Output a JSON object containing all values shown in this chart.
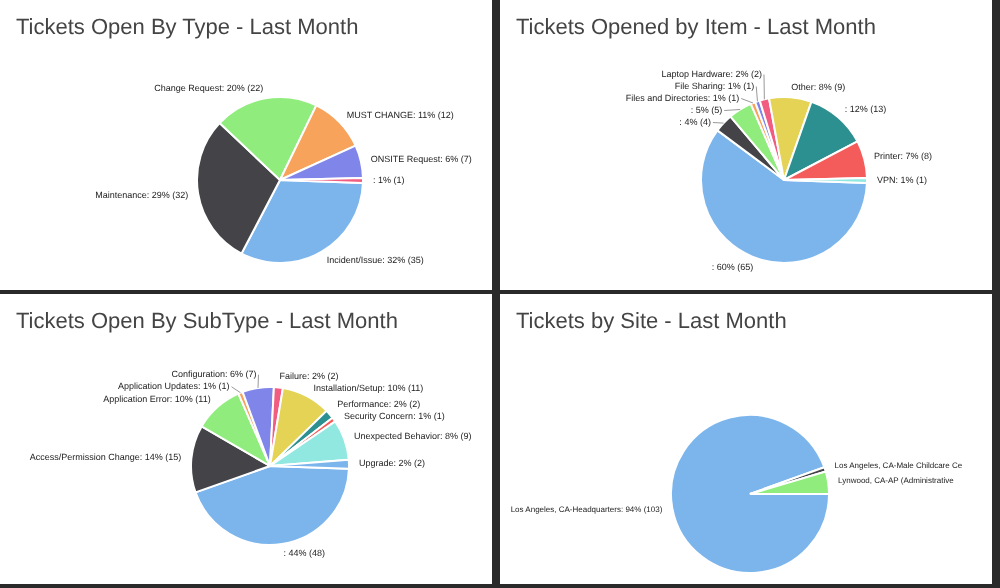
{
  "chart_data": [
    {
      "type": "pie",
      "title": "Tickets Open By Type - Last Month",
      "categories": [
        "Incident/Issue",
        "Maintenance",
        "Change Request",
        "MUST CHANGE",
        "ONSITE Request",
        null
      ],
      "values": [
        35,
        32,
        22,
        12,
        7,
        1
      ],
      "value_labels": [
        "32% (35)",
        "29% (32)",
        "20% (22)",
        "11% (12)",
        "6% (7)",
        ": 1% (1)"
      ],
      "colors": [
        "#7cb5ec",
        "#434348",
        "#90ed7d",
        "#f7a35c",
        "#8085e9",
        "#f15c80"
      ]
    },
    {
      "type": "pie",
      "title": "Tickets Opened by Item - Last Month",
      "categories": [
        null,
        null,
        null,
        "Files and Directories",
        "File Sharing",
        "Laptop Hardware",
        "Other",
        null,
        "Printer",
        "VPN"
      ],
      "values": [
        65,
        4,
        5,
        1,
        1,
        2,
        9,
        13,
        8,
        1
      ],
      "value_labels": [
        ": 60% (65)",
        ": 4% (4)",
        ": 5% (5)",
        "1% (1)",
        "1% (1)",
        "2% (2)",
        "8% (9)",
        ": 12% (13)",
        "7% (8)",
        "1% (1)"
      ],
      "colors": [
        "#7cb5ec",
        "#434348",
        "#90ed7d",
        "#f7a35c",
        "#8085e9",
        "#f15c80",
        "#e4d354",
        "#2b908f",
        "#f45b5b",
        "#91e8e1"
      ]
    },
    {
      "type": "pie",
      "title": "Tickets Open By SubType - Last Month",
      "categories": [
        null,
        "Access/Permission Change",
        "Application Error",
        "Application Updates",
        "Configuration",
        "Failure",
        "Installation/Setup",
        "Performance",
        "Security Concern",
        "Unexpected Behavior",
        "Upgrade"
      ],
      "values": [
        48,
        15,
        11,
        1,
        7,
        2,
        11,
        2,
        1,
        9,
        2
      ],
      "value_labels": [
        ": 44% (48)",
        "14% (15)",
        "10% (11)",
        "1% (1)",
        "6% (7)",
        "2% (2)",
        "10% (11)",
        "2% (2)",
        "1% (1)",
        "8% (9)",
        "2% (2)"
      ],
      "colors": [
        "#7cb5ec",
        "#434348",
        "#90ed7d",
        "#f7a35c",
        "#8085e9",
        "#f15c80",
        "#e4d354",
        "#2b908f",
        "#f45b5b",
        "#91e8e1",
        "#7cb5ec"
      ]
    },
    {
      "type": "pie",
      "title": "Tickets by Site - Last Month",
      "categories": [
        "Los Angeles, CA-Headquarters",
        "Los Angeles, CA-Male Childcare Ce",
        "Lynwood, CA-AP (Administrative"
      ],
      "values": [
        103,
        1,
        5
      ],
      "value_labels": [
        "94% (103)",
        null,
        null
      ],
      "colors": [
        "#7cb5ec",
        "#434348",
        "#90ed7d"
      ]
    }
  ]
}
